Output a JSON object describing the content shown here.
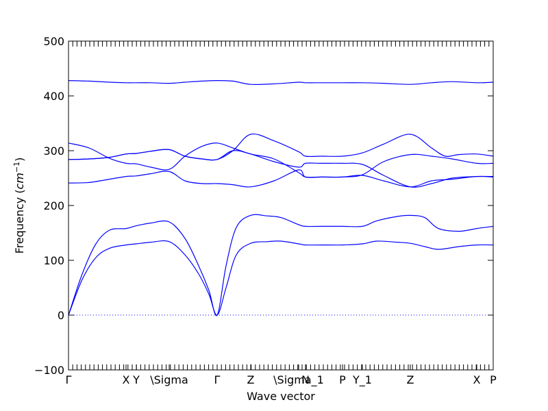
{
  "chart_data": {
    "type": "line",
    "title": "",
    "xlabel": "Wave vector",
    "ylabel": "Frequency ($cm^{-1}$)",
    "ylabel_parts": {
      "text": "Frequency (",
      "unit_base": "cm",
      "unit_exp": "−1",
      "close": ")"
    },
    "ylim": [
      -100,
      500
    ],
    "yticks": [
      -100,
      0,
      100,
      200,
      300,
      400,
      500
    ],
    "xlim": [
      0,
      6.2
    ],
    "xticks": [
      {
        "pos": 0.0,
        "label": "Γ"
      },
      {
        "pos": 0.84,
        "label": "X"
      },
      {
        "pos": 0.99,
        "label": "Y"
      },
      {
        "pos": 1.47,
        "label": "\\Sigma"
      },
      {
        "pos": 2.17,
        "label": "Γ"
      },
      {
        "pos": 2.66,
        "label": "Z"
      },
      {
        "pos": 3.36,
        "label": "\\Sigma_1"
      },
      {
        "pos": 3.46,
        "label": "N"
      },
      {
        "pos": 4.0,
        "label": "P"
      },
      {
        "pos": 4.29,
        "label": "Y_1"
      },
      {
        "pos": 4.99,
        "label": "Z"
      },
      {
        "pos": 5.96,
        "label": "X"
      },
      {
        "pos": 6.2,
        "label": "P"
      }
    ],
    "zero_line": {
      "y": 0,
      "style": "dotted"
    },
    "line_color": "#0000ff",
    "series": [
      {
        "x": [
          0,
          0.2,
          0.4,
          0.6,
          0.84,
          0.99,
          1.2,
          1.47,
          1.7,
          1.9,
          2.05,
          2.17,
          2.3,
          2.45,
          2.66,
          2.9,
          3.1,
          3.36,
          3.46,
          3.7,
          4.0,
          4.29,
          4.5,
          4.8,
          4.99,
          5.2,
          5.4,
          5.7,
          5.96,
          6.2
        ],
        "y": [
          0,
          65,
          105,
          122,
          128,
          130,
          133,
          134,
          110,
          75,
          38,
          0,
          50,
          110,
          131,
          134,
          135,
          130,
          128,
          128,
          128,
          130,
          135,
          133,
          131,
          125,
          120,
          125,
          128,
          128
        ]
      },
      {
        "x": [
          0,
          0.2,
          0.4,
          0.6,
          0.84,
          0.99,
          1.2,
          1.47,
          1.7,
          1.9,
          2.05,
          2.17,
          2.3,
          2.45,
          2.66,
          2.9,
          3.1,
          3.36,
          3.46,
          3.7,
          4.0,
          4.29,
          4.5,
          4.8,
          4.99,
          5.2,
          5.4,
          5.7,
          5.96,
          6.2
        ],
        "y": [
          0,
          75,
          130,
          155,
          158,
          163,
          168,
          170,
          140,
          90,
          45,
          0,
          90,
          160,
          182,
          181,
          178,
          165,
          162,
          162,
          162,
          162,
          172,
          180,
          182,
          178,
          158,
          153,
          158,
          162
        ]
      },
      {
        "x": [
          0,
          0.3,
          0.6,
          0.84,
          0.99,
          1.2,
          1.47,
          1.7,
          1.95,
          2.17,
          2.4,
          2.66,
          3.0,
          3.36,
          3.46,
          3.7,
          4.0,
          4.29,
          4.6,
          4.99,
          5.3,
          5.6,
          5.96,
          6.2
        ],
        "y": [
          241,
          242,
          248,
          253,
          254,
          258,
          262,
          245,
          240,
          240,
          238,
          234,
          245,
          265,
          252,
          252,
          252,
          255,
          245,
          234,
          245,
          248,
          253,
          252
        ]
      },
      {
        "x": [
          0,
          0.3,
          0.6,
          0.84,
          0.99,
          1.2,
          1.47,
          1.7,
          1.95,
          2.17,
          2.4,
          2.66,
          3.0,
          3.36,
          3.46,
          3.7,
          4.0,
          4.29,
          4.6,
          4.99,
          5.3,
          5.6,
          5.96,
          6.2
        ],
        "y": [
          314,
          305,
          286,
          277,
          276,
          270,
          266,
          290,
          308,
          314,
          305,
          294,
          285,
          260,
          252,
          252,
          252,
          256,
          280,
          293,
          290,
          285,
          277,
          277
        ]
      },
      {
        "x": [
          0,
          0.3,
          0.6,
          0.84,
          0.99,
          1.2,
          1.47,
          1.7,
          1.95,
          2.17,
          2.4,
          2.66,
          3.0,
          3.36,
          3.46,
          3.7,
          4.0,
          4.29,
          4.6,
          4.99,
          5.3,
          5.6,
          5.96,
          6.2
        ],
        "y": [
          284,
          285,
          288,
          294,
          295,
          299,
          302,
          290,
          285,
          284,
          300,
          294,
          280,
          270,
          277,
          277,
          277,
          275,
          255,
          234,
          240,
          250,
          253,
          253
        ]
      },
      {
        "x": [
          0,
          0.3,
          0.6,
          0.84,
          0.99,
          1.2,
          1.47,
          1.7,
          1.95,
          2.17,
          2.4,
          2.66,
          3.0,
          3.36,
          3.46,
          3.7,
          4.0,
          4.29,
          4.6,
          4.99,
          5.3,
          5.5,
          5.7,
          5.96,
          6.2
        ],
        "y": [
          284,
          285,
          288,
          294,
          295,
          299,
          302,
          290,
          285,
          284,
          300,
          330,
          318,
          298,
          290,
          290,
          290,
          296,
          312,
          330,
          305,
          290,
          293,
          294,
          290
        ]
      },
      {
        "x": [
          0,
          0.3,
          0.6,
          0.84,
          0.99,
          1.2,
          1.47,
          1.7,
          1.95,
          2.17,
          2.4,
          2.66,
          3.0,
          3.36,
          3.46,
          3.7,
          4.0,
          4.29,
          4.6,
          4.99,
          5.3,
          5.6,
          5.96,
          6.2
        ],
        "y": [
          428,
          427,
          425,
          424,
          424,
          424,
          423,
          425,
          427,
          428,
          427,
          421,
          422,
          425,
          424,
          424,
          424,
          424,
          423,
          421,
          424,
          426,
          424,
          425
        ]
      }
    ]
  }
}
